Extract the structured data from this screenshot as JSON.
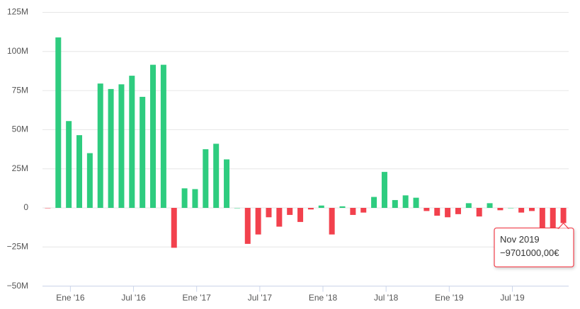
{
  "chart_data": {
    "type": "bar",
    "categories": [
      null,
      null,
      null,
      "Ene '16",
      null,
      null,
      null,
      null,
      null,
      "Jul '16",
      null,
      null,
      null,
      null,
      null,
      "Ene '17",
      null,
      null,
      null,
      null,
      null,
      "Jul '17",
      null,
      null,
      null,
      null,
      null,
      "Ene '18",
      null,
      null,
      null,
      null,
      null,
      "Jul '18",
      null,
      null,
      null,
      null,
      null,
      "Ene '19",
      null,
      null,
      null,
      null,
      null,
      "Jul '19",
      null,
      null,
      null,
      null
    ],
    "values": [
      -200000,
      109000000,
      55500000,
      46500000,
      35000000,
      79500000,
      76000000,
      79000000,
      84500000,
      71000000,
      91500000,
      91500000,
      -25500000,
      12500000,
      12000000,
      37500000,
      41000000,
      31000000,
      0,
      -23000000,
      -17000000,
      -6000000,
      -12000000,
      -4500000,
      -9000000,
      -1000000,
      1500000,
      -17000000,
      1000000,
      -4500000,
      -3000000,
      7000000,
      23000000,
      5000000,
      8000000,
      6500000,
      -2000000,
      -5000000,
      -6000000,
      -4000000,
      3000000,
      -5500000,
      3000000,
      -1500000,
      0,
      -3000000,
      -2000000,
      -15000000,
      -20000000,
      -9701000
    ],
    "positive_color": "#2ecc7f",
    "negative_color": "#f2414d",
    "ylim": [
      -50000000,
      125000000
    ],
    "yticks": [
      {
        "value": -50000000,
        "label": "−50M"
      },
      {
        "value": -25000000,
        "label": "−25M"
      },
      {
        "value": 0,
        "label": "0"
      },
      {
        "value": 25000000,
        "label": "25M"
      },
      {
        "value": 50000000,
        "label": "50M"
      },
      {
        "value": 75000000,
        "label": "75M"
      },
      {
        "value": 100000000,
        "label": "100M"
      },
      {
        "value": 125000000,
        "label": "125M"
      }
    ],
    "grid": true,
    "tooltip": {
      "title": "Nov 2019",
      "value": -9701000,
      "value_label": "−9701000,00€"
    }
  }
}
